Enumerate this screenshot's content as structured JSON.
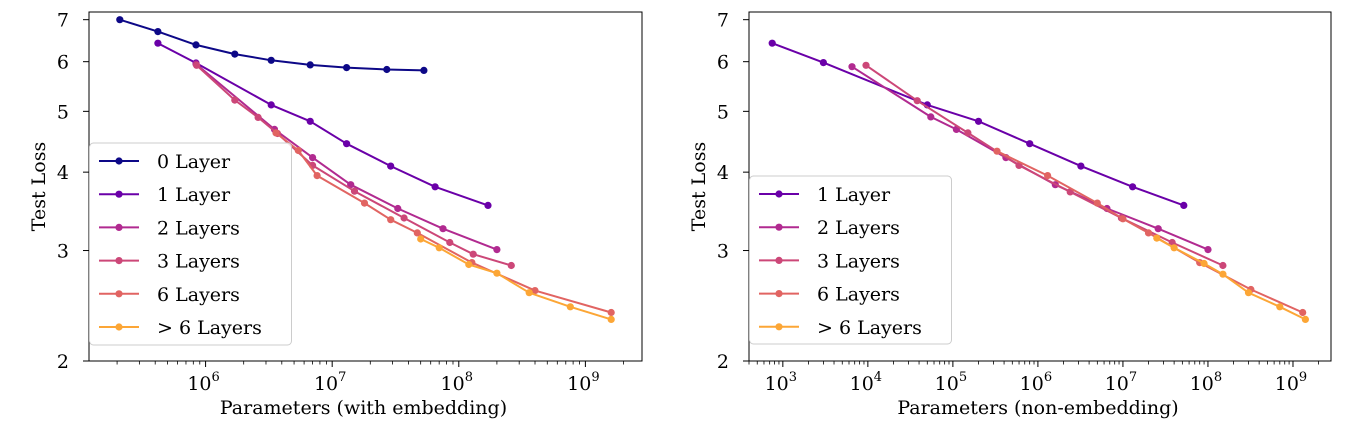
{
  "chart_data": [
    {
      "type": "line",
      "xlabel": "Parameters (with embedding)",
      "ylabel": "Test Loss",
      "xscale": "log",
      "yscale": "log",
      "xlim": [
        120000,
        2800000000
      ],
      "ylim": [
        2.0,
        7.2
      ],
      "xticks": [
        {
          "value": 1000000,
          "base": "10",
          "exp": "6"
        },
        {
          "value": 10000000,
          "base": "10",
          "exp": "7"
        },
        {
          "value": 100000000,
          "base": "10",
          "exp": "8"
        },
        {
          "value": 1000000000,
          "base": "10",
          "exp": "9"
        }
      ],
      "yticks": [
        {
          "value": 2,
          "label": "2"
        },
        {
          "value": 3,
          "label": "3"
        },
        {
          "value": 4,
          "label": "4"
        },
        {
          "value": 5,
          "label": "5"
        },
        {
          "value": 6,
          "label": "6"
        },
        {
          "value": 7,
          "label": "7"
        }
      ],
      "legend": "lower-left",
      "series": [
        {
          "name": "0 Layer",
          "color": "#0d0887",
          "points": [
            [
              210000,
              7.0
            ],
            [
              420000,
              6.7
            ],
            [
              840000,
              6.38
            ],
            [
              1700000,
              6.17
            ],
            [
              3300000,
              6.03
            ],
            [
              6700000,
              5.93
            ],
            [
              13000000,
              5.87
            ],
            [
              27000000,
              5.83
            ],
            [
              53000000,
              5.81
            ]
          ]
        },
        {
          "name": "1 Layer",
          "color": "#6a00a8",
          "points": [
            [
              420000,
              6.42
            ],
            [
              840000,
              5.97
            ],
            [
              3300000,
              5.12
            ],
            [
              6700000,
              4.82
            ],
            [
              13000000,
              4.44
            ],
            [
              29000000,
              4.09
            ],
            [
              65000000,
              3.79
            ],
            [
              170000000,
              3.54
            ]
          ]
        },
        {
          "name": "2 Layers",
          "color": "#b12a90",
          "points": [
            [
              840000,
              5.95
            ],
            [
              3500000,
              4.68
            ],
            [
              7000000,
              4.22
            ],
            [
              14000000,
              3.82
            ],
            [
              33000000,
              3.5
            ],
            [
              75000000,
              3.25
            ],
            [
              200000000,
              3.01
            ]
          ]
        },
        {
          "name": "3 Layers",
          "color": "#cc4778",
          "points": [
            [
              850000,
              5.92
            ],
            [
              1700000,
              5.21
            ],
            [
              2600000,
              4.89
            ],
            [
              3700000,
              4.61
            ],
            [
              7000000,
              4.1
            ],
            [
              15000000,
              3.73
            ],
            [
              37000000,
              3.38
            ],
            [
              85000000,
              3.09
            ],
            [
              130000000,
              2.96
            ],
            [
              260000000,
              2.84
            ]
          ]
        },
        {
          "name": "6 Layers",
          "color": "#e16462",
          "points": [
            [
              3600000,
              4.62
            ],
            [
              5400000,
              4.33
            ],
            [
              7600000,
              3.95
            ],
            [
              18000000,
              3.57
            ],
            [
              29000000,
              3.36
            ],
            [
              47000000,
              3.2
            ],
            [
              127000000,
              2.87
            ],
            [
              400000000,
              2.59
            ],
            [
              1600000000,
              2.39
            ]
          ]
        },
        {
          "name": "> 6 Layers",
          "color": "#fca636",
          "points": [
            [
              50000000,
              3.13
            ],
            [
              70000000,
              3.03
            ],
            [
              120000000,
              2.85
            ],
            [
              200000000,
              2.76
            ],
            [
              360000000,
              2.57
            ],
            [
              760000000,
              2.44
            ],
            [
              1600000000,
              2.33
            ]
          ]
        }
      ]
    },
    {
      "type": "line",
      "xlabel": "Parameters (non-embedding)",
      "ylabel": "Test Loss",
      "xscale": "log",
      "yscale": "log",
      "xlim": [
        400,
        2800000000
      ],
      "ylim": [
        2.0,
        7.2
      ],
      "xticks": [
        {
          "value": 1000,
          "base": "10",
          "exp": "3"
        },
        {
          "value": 10000,
          "base": "10",
          "exp": "4"
        },
        {
          "value": 100000,
          "base": "10",
          "exp": "5"
        },
        {
          "value": 1000000,
          "base": "10",
          "exp": "6"
        },
        {
          "value": 10000000,
          "base": "10",
          "exp": "7"
        },
        {
          "value": 100000000,
          "base": "10",
          "exp": "8"
        },
        {
          "value": 1000000000,
          "base": "10",
          "exp": "9"
        }
      ],
      "yticks": [
        {
          "value": 2,
          "label": "2"
        },
        {
          "value": 3,
          "label": "3"
        },
        {
          "value": 4,
          "label": "4"
        },
        {
          "value": 5,
          "label": "5"
        },
        {
          "value": 6,
          "label": "6"
        },
        {
          "value": 7,
          "label": "7"
        }
      ],
      "legend": "lower-left",
      "series": [
        {
          "name": "1 Layer",
          "color": "#6a00a8",
          "points": [
            [
              750,
              6.42
            ],
            [
              3000,
              5.98
            ],
            [
              50000,
              5.12
            ],
            [
              200000,
              4.82
            ],
            [
              800000,
              4.44
            ],
            [
              3200000,
              4.09
            ],
            [
              13000000,
              3.79
            ],
            [
              52000000,
              3.54
            ]
          ]
        },
        {
          "name": "2 Layers",
          "color": "#b12a90",
          "points": [
            [
              6500,
              5.89
            ],
            [
              55000,
              4.9
            ],
            [
              110000,
              4.68
            ],
            [
              420000,
              4.22
            ],
            [
              1600000,
              3.82
            ],
            [
              6500000,
              3.5
            ],
            [
              26000000,
              3.25
            ],
            [
              100000000,
              3.01
            ]
          ]
        },
        {
          "name": "3 Layers",
          "color": "#cc4778",
          "points": [
            [
              9500,
              5.92
            ],
            [
              38000,
              5.2
            ],
            [
              150000,
              4.62
            ],
            [
              600000,
              4.1
            ],
            [
              2400000,
              3.72
            ],
            [
              9600000,
              3.38
            ],
            [
              38000000,
              3.09
            ],
            [
              150000000,
              2.84
            ]
          ]
        },
        {
          "name": "6 Layers",
          "color": "#e16462",
          "points": [
            [
              330000,
              4.32
            ],
            [
              1300000,
              3.95
            ],
            [
              5000000,
              3.57
            ],
            [
              10000000,
              3.37
            ],
            [
              20000000,
              3.2
            ],
            [
              80000000,
              2.87
            ],
            [
              320000000,
              2.6
            ],
            [
              1300000000,
              2.39
            ]
          ]
        },
        {
          "name": "> 6 Layers",
          "color": "#fca636",
          "points": [
            [
              25000000,
              3.14
            ],
            [
              40000000,
              3.03
            ],
            [
              90000000,
              2.86
            ],
            [
              150000000,
              2.75
            ],
            [
              300000000,
              2.57
            ],
            [
              700000000,
              2.44
            ],
            [
              1400000000,
              2.33
            ]
          ]
        }
      ]
    }
  ]
}
